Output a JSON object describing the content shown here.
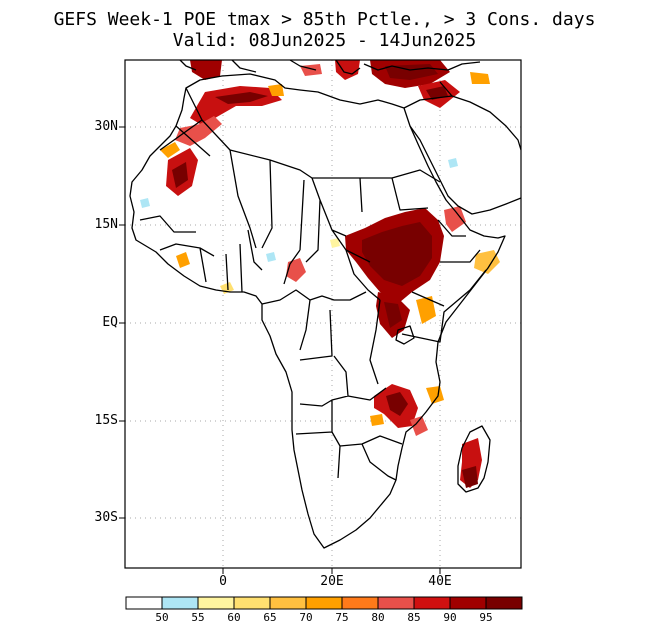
{
  "title_line1": "GEFS Week-1 POE tmax > 85th Pctle., > 3 Cons. days",
  "title_line2": "Valid: 08Jun2025 - 14Jun2025",
  "lat_labels": [
    "30N",
    "15N",
    "EQ",
    "15S",
    "30S"
  ],
  "lon_labels": [
    "0",
    "20E",
    "40E"
  ],
  "colorbar": {
    "labels": [
      "50",
      "55",
      "60",
      "65",
      "70",
      "75",
      "80",
      "85",
      "90",
      "95"
    ],
    "colors": [
      "#ffffff",
      "#aee6f5",
      "#fff5a0",
      "#ffe070",
      "#ffc040",
      "#ffa000",
      "#ff7a1a",
      "#e8504a",
      "#d01010",
      "#a00000",
      "#780000"
    ]
  }
}
